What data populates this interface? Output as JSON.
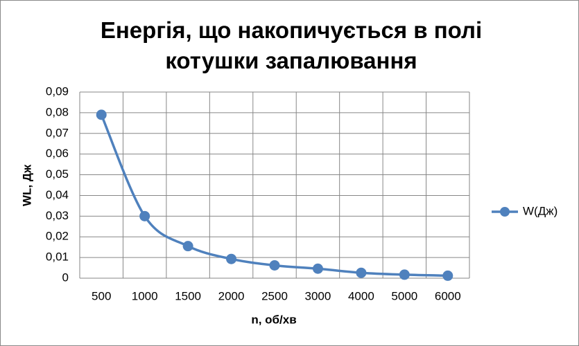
{
  "chart_data": {
    "type": "line",
    "title": "Енергія, що накопичується в полі котушки запалювання",
    "x_label": "n, об/хв",
    "y_label": "WL, Дж",
    "categories": [
      "500",
      "1000",
      "1500",
      "2000",
      "2500",
      "3000",
      "4000",
      "5000",
      "6000"
    ],
    "series": [
      {
        "name": "W(Дж)",
        "color": "#4f81bd",
        "values": [
          0.079,
          0.03,
          0.0155,
          0.0093,
          0.0062,
          0.0046,
          0.0026,
          0.0017,
          0.0012
        ]
      }
    ],
    "ylim": [
      0,
      0.09
    ],
    "yticks": [
      0,
      {
        "value": 0.01,
        "label": "0,01"
      },
      {
        "value": 0.02,
        "label": "0,02"
      },
      {
        "value": 0.03,
        "label": "0,03"
      },
      {
        "value": 0.04,
        "label": "0,04"
      },
      {
        "value": 0.05,
        "label": "0,05"
      },
      {
        "value": 0.06,
        "label": "0,06"
      },
      {
        "value": 0.07,
        "label": "0,07"
      },
      {
        "value": 0.08,
        "label": "0,08"
      },
      {
        "value": 0.09,
        "label": "0,09"
      }
    ],
    "grid": true,
    "smooth": true,
    "legend": "right"
  }
}
